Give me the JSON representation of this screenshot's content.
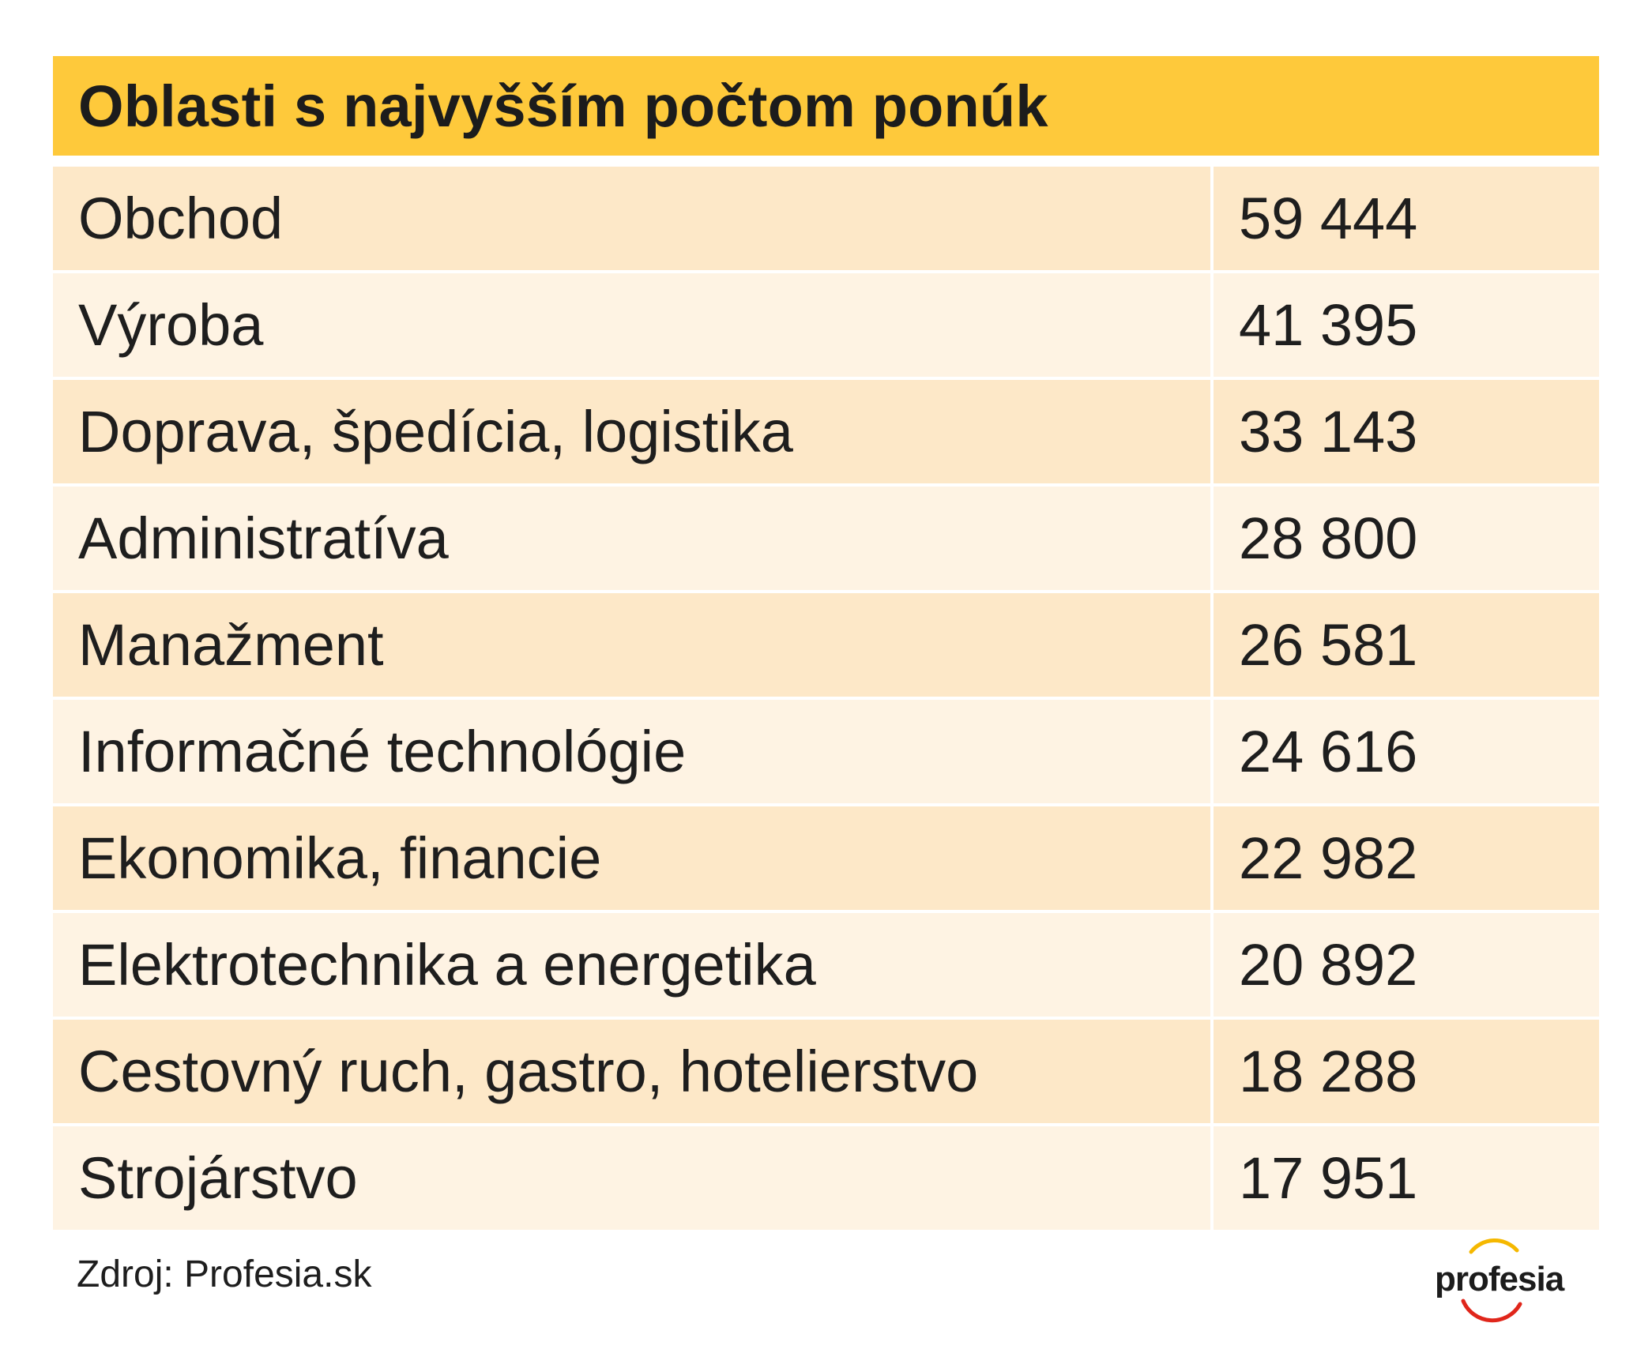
{
  "title": "Oblasti s najvyšším počtom ponúk",
  "rows": [
    {
      "label": "Obchod",
      "value": "59 444"
    },
    {
      "label": "Výroba",
      "value": "41 395"
    },
    {
      "label": "Doprava, špedícia, logistika",
      "value": "33 143"
    },
    {
      "label": "Administratíva",
      "value": "28 800"
    },
    {
      "label": "Manažment",
      "value": "26 581"
    },
    {
      "label": "Informačné technológie",
      "value": "24 616"
    },
    {
      "label": "Ekonomika, financie",
      "value": "22 982"
    },
    {
      "label": "Elektrotechnika a energetika",
      "value": "20 892"
    },
    {
      "label": "Cestovný ruch, gastro, hotelierstvo",
      "value": "18 288"
    },
    {
      "label": "Strojárstvo",
      "value": "17 951"
    }
  ],
  "source": "Zdroj: Profesia.sk",
  "logo": {
    "text": "profesia",
    "arc_colors": [
      "#f5b800",
      "#e0261b"
    ]
  },
  "colors": {
    "header": "#fec93b",
    "row_odd": "#fde8c8",
    "row_even": "#fef3e3"
  }
}
